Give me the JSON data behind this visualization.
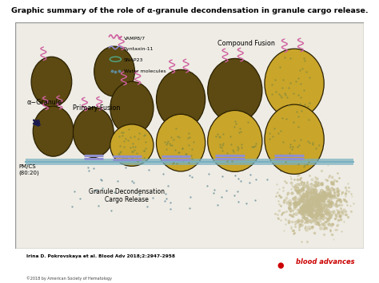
{
  "title": "Graphic summary of the role of α-granule decondensation in granule cargo release.",
  "title_fontsize": 6.8,
  "author_line": "Irina D. Pokrovskaya et al. Blood Adv 2018;2:2947-2958",
  "copyright_line": "©2018 by American Society of Hematology",
  "journal_name": "blood advances",
  "bg_color": "#eeece4",
  "border_color": "#999999",
  "granule_dark_color": "#5c4a12",
  "granule_light_color": "#c9a52a",
  "granule_outline": "#2a1f00",
  "pm_line_color": "#78b0c0",
  "vamp_color": "#d060a0",
  "syntaxin_color": "#8888cc",
  "snap_color": "#50a888",
  "water_color": "#608898",
  "snare_color": "#9090d0",
  "labels": {
    "alpha_granule": "α−Granule",
    "primary_fusion": "Primary Fusion",
    "compound_fusion": "Compound Fusion",
    "pm_cs": "PM/CS\n(80:20)",
    "granule_decondensation": "Granule Decondensation\nCargo Release"
  },
  "legend_items": [
    "VAMP8/7",
    "Syntaxin-11",
    "SNAP23",
    "Water molecules"
  ]
}
